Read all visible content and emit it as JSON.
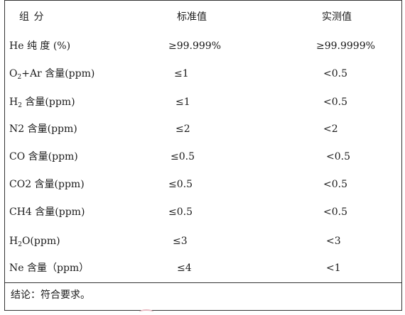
{
  "header": {
    "component": "组  分",
    "standard": "标准值",
    "measured": "实测值"
  },
  "rows": [
    {
      "name": "He 纯 度 (%)",
      "name_sub": "",
      "name_rest": "",
      "standard": "≥99.999%",
      "measured": "≥99.9999%"
    },
    {
      "name": "O",
      "name_sub": "2",
      "name_rest": "+Ar 含量(ppm)",
      "standard": "≤1",
      "measured": "<0.5"
    },
    {
      "name": "H",
      "name_sub": "2",
      "name_rest": " 含量(ppm)",
      "standard": "≤1",
      "measured": "<0.5"
    },
    {
      "name": "N2 含量(ppm)",
      "name_sub": "",
      "name_rest": "",
      "standard": "≤2",
      "measured": "<2"
    },
    {
      "name": "CO 含量(ppm)",
      "name_sub": "",
      "name_rest": "",
      "standard": "≤0.5",
      "measured": "<0.5"
    },
    {
      "name": "CO2 含量(ppm)",
      "name_sub": "",
      "name_rest": "",
      "standard": "≤0.5",
      "measured": "<0.5"
    },
    {
      "name": "CH4 含量(ppm)",
      "name_sub": "",
      "name_rest": "",
      "standard": "≤0.5",
      "measured": "<0.5"
    },
    {
      "name": "H",
      "name_sub": "2",
      "name_rest": "O(ppm)",
      "standard": "≤3",
      "measured": "<3"
    },
    {
      "name": "Ne 含量（ppm）",
      "name_sub": "",
      "name_rest": "",
      "standard": "≤4",
      "measured": "<1"
    }
  ],
  "conclusion": "结论：符合要求。"
}
